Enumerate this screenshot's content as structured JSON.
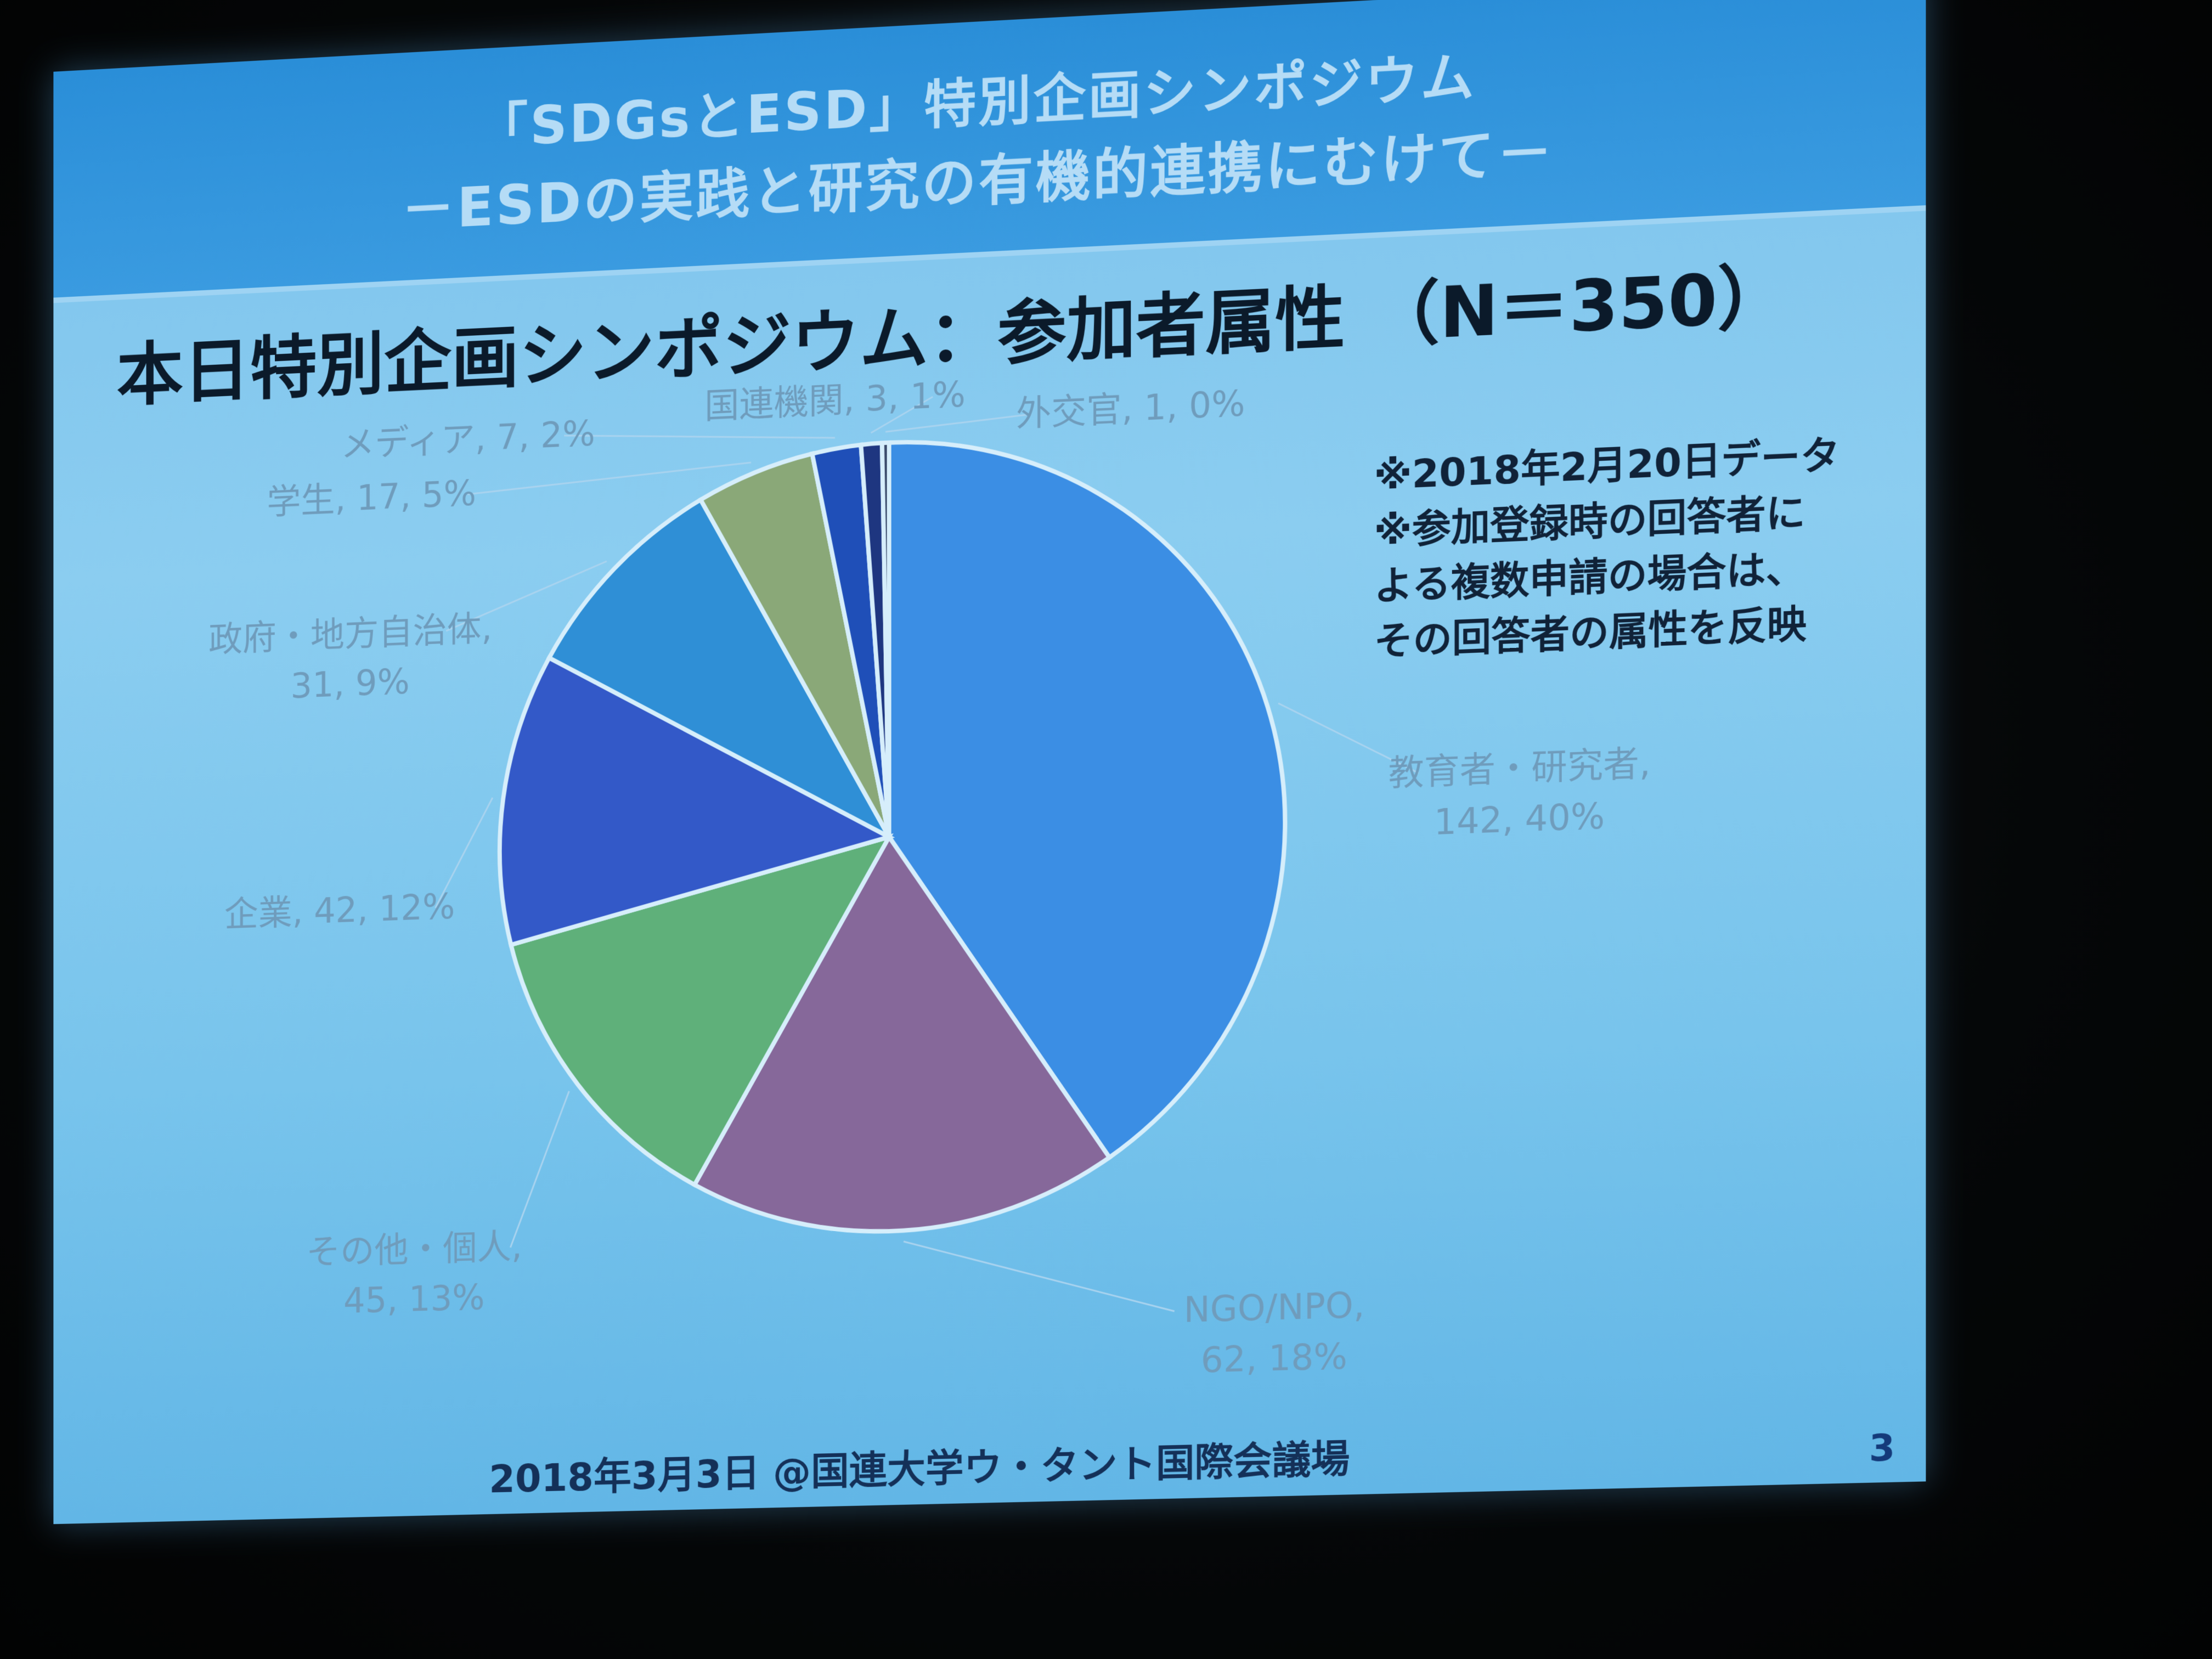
{
  "header": {
    "line1": "「SDGsとESD」特別企画シンポジウム",
    "line2": "－ESDの実践と研究の有機的連携にむけて－"
  },
  "title": "本日特別企画シンポジウム：参加者属性 （N＝350）",
  "notes": [
    "※2018年2月20日データ",
    "※参加登録時の回答者に",
    "よる複数申請の場合は、",
    "その回答者の属性を反映"
  ],
  "footer": "2018年3月3日 @国連大学ウ・タント国際会議場",
  "page_number": "3",
  "chart_data": {
    "type": "pie",
    "title": "本日特別企画シンポジウム：参加者属性 （N＝350）",
    "slices": [
      {
        "label": "教育者・研究者",
        "line1": "教育者・研究者,",
        "line2": "142, 40%",
        "value": 142,
        "percent": 40,
        "color": "#3b8ee4"
      },
      {
        "label": "NGO/NPO",
        "line1": "NGO/NPO,",
        "line2": "62, 18%",
        "value": 62,
        "percent": 18,
        "color": "#86689a"
      },
      {
        "label": "その他・個人",
        "line1": "その他・個人,",
        "line2": "45, 13%",
        "value": 45,
        "percent": 13,
        "color": "#5fb07a"
      },
      {
        "label": "企業",
        "line1": "企業, 42, 12%",
        "line2": "",
        "value": 42,
        "percent": 12,
        "color": "#3359c8"
      },
      {
        "label": "政府・地方自治体",
        "line1": "政府・地方自治体,",
        "line2": "31, 9%",
        "value": 31,
        "percent": 9,
        "color": "#2f8fd6"
      },
      {
        "label": "学生",
        "line1": "学生, 17, 5%",
        "line2": "",
        "value": 17,
        "percent": 5,
        "color": "#8aa878"
      },
      {
        "label": "メディア",
        "line1": "メディア, 7, 2%",
        "line2": "",
        "value": 7,
        "percent": 2,
        "color": "#1f4fb8"
      },
      {
        "label": "国連機関",
        "line1": "国連機関, 3, 1%",
        "line2": "",
        "value": 3,
        "percent": 1,
        "color": "#1e3680"
      },
      {
        "label": "外交官",
        "line1": "外交官, 1, 0%",
        "line2": "",
        "value": 1,
        "percent": 0,
        "color": "#3a4a6a"
      }
    ]
  }
}
